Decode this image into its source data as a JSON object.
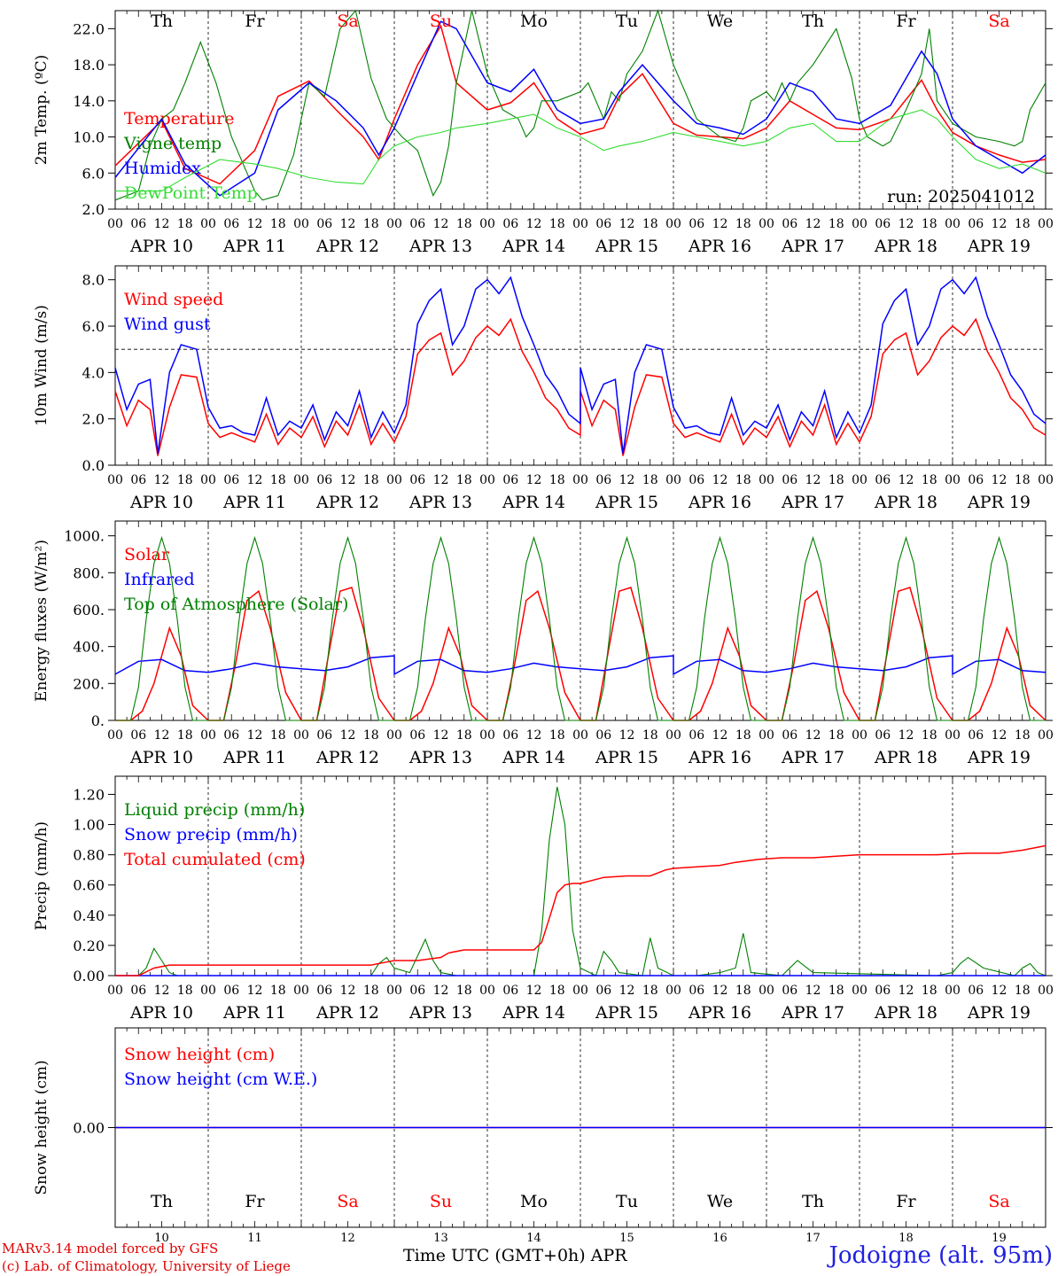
{
  "station": "Jodoigne (alt. 95m)",
  "credits": [
    "MARv3.14 model forced by GFS",
    "(c) Lab. of Climatology, University of Liege"
  ],
  "run_label": "run: 2025041012",
  "x_title": "Time UTC (GMT+0h)",
  "x_month": "APR",
  "days": [
    {
      "date": "APR 10",
      "num": "10",
      "weekday": "Th",
      "weekend": false
    },
    {
      "date": "APR 11",
      "num": "11",
      "weekday": "Fr",
      "weekend": false
    },
    {
      "date": "APR 12",
      "num": "12",
      "weekday": "Sa",
      "weekend": true
    },
    {
      "date": "APR 13",
      "num": "13",
      "weekday": "Su",
      "weekend": true
    },
    {
      "date": "APR 14",
      "num": "14",
      "weekday": "Mo",
      "weekend": false
    },
    {
      "date": "APR 15",
      "num": "15",
      "weekday": "Tu",
      "weekend": false
    },
    {
      "date": "APR 16",
      "num": "16",
      "weekday": "We",
      "weekend": false
    },
    {
      "date": "APR 17",
      "num": "17",
      "weekday": "Th",
      "weekend": false
    },
    {
      "date": "APR 18",
      "num": "18",
      "weekday": "Fr",
      "weekend": false
    },
    {
      "date": "APR 19",
      "num": "19",
      "weekday": "Sa",
      "weekend": true
    }
  ],
  "hour_ticks": [
    "00",
    "06",
    "12",
    "18"
  ],
  "colors": {
    "red": "#ff0000",
    "green": "#008000",
    "blue": "#0000ff",
    "lightgreen": "#33dd33",
    "weekend": "#ff0000"
  },
  "chart_data": [
    {
      "type": "line",
      "ylabel": "2m Temp. (ºC)",
      "ylim": [
        2,
        24
      ],
      "yticks": [
        2.0,
        6.0,
        10.0,
        14.0,
        18.0,
        22.0
      ],
      "ytick_labels": [
        "2.0",
        "6.0",
        "10.0",
        "14.0",
        "18.0",
        "22.0"
      ],
      "series": [
        {
          "name": "Temperature",
          "color": "red",
          "x": [
            0,
            12,
            18,
            27,
            36,
            42,
            50,
            57,
            64,
            68,
            72,
            78,
            84,
            88,
            96,
            102,
            108,
            114,
            120,
            126,
            130,
            136,
            144,
            150,
            156,
            162,
            168,
            174,
            180,
            186,
            192,
            200,
            208,
            212,
            216,
            222,
            228,
            234,
            240
          ],
          "y": [
            6.8,
            11.8,
            6.5,
            4.8,
            8.5,
            14.5,
            16.2,
            13,
            10,
            7.5,
            12,
            18,
            22.3,
            16,
            13,
            13.8,
            16,
            12,
            10.3,
            11,
            14.5,
            17,
            11.5,
            10.2,
            10,
            9.8,
            11,
            14,
            12.5,
            11,
            10.8,
            12,
            16.3,
            13,
            10.5,
            9,
            8,
            7.2,
            7.5
          ]
        },
        {
          "name": "Vigne temp",
          "color": "green",
          "x": [
            0,
            6,
            9,
            12,
            15,
            18,
            22,
            26,
            30,
            34,
            36,
            38,
            42,
            46,
            50,
            54,
            58,
            62,
            66,
            70,
            74,
            78,
            82,
            84,
            86,
            88,
            92,
            96,
            100,
            104,
            106,
            108,
            110,
            114,
            120,
            122,
            126,
            128,
            130,
            132,
            136,
            140,
            144,
            150,
            156,
            160,
            162,
            164,
            168,
            170,
            172,
            174,
            176,
            180,
            186,
            190,
            192,
            194,
            196,
            198,
            200,
            204,
            208,
            210,
            212,
            216,
            222,
            228,
            232,
            234,
            236,
            240
          ],
          "y": [
            3,
            4,
            9,
            12,
            13,
            16,
            20.5,
            16,
            10,
            6,
            4,
            3,
            3.5,
            8,
            16,
            14.5,
            22,
            24,
            16.5,
            12,
            10,
            8.5,
            3.5,
            5,
            9,
            16,
            24,
            17,
            13,
            12,
            10,
            11,
            14,
            14,
            15,
            16,
            12,
            15,
            14,
            17,
            19.5,
            24,
            18,
            12,
            10,
            9.5,
            11,
            14,
            15,
            14,
            16,
            14,
            16,
            18,
            22,
            16.5,
            12,
            10,
            9.5,
            9,
            9.5,
            13,
            17,
            22,
            14,
            11.5,
            10,
            9.5,
            9,
            9.5,
            13,
            16
          ]
        },
        {
          "name": "Humidex",
          "color": "blue",
          "x": [
            0,
            12,
            18,
            27,
            36,
            42,
            50,
            57,
            64,
            68,
            72,
            78,
            84,
            88,
            96,
            102,
            108,
            114,
            120,
            126,
            130,
            136,
            144,
            150,
            156,
            162,
            168,
            174,
            180,
            186,
            192,
            200,
            208,
            212,
            216,
            222,
            228,
            234,
            240
          ],
          "y": [
            5.5,
            12,
            7,
            3.5,
            6,
            13,
            16,
            14,
            11,
            8,
            11,
            17,
            22.8,
            22,
            16,
            15,
            17.5,
            13,
            11.5,
            12,
            15,
            18,
            14,
            11.5,
            11,
            10.3,
            12,
            16,
            15,
            12,
            11.5,
            13.5,
            19.5,
            17,
            12,
            9,
            7.5,
            6,
            8
          ]
        },
        {
          "name": "DewPoint Temp",
          "color": "lightgreen",
          "x": [
            0,
            12,
            18,
            27,
            36,
            42,
            50,
            57,
            64,
            68,
            72,
            78,
            84,
            88,
            96,
            102,
            108,
            114,
            120,
            126,
            130,
            136,
            144,
            150,
            156,
            162,
            168,
            174,
            180,
            186,
            192,
            200,
            208,
            212,
            216,
            222,
            228,
            234,
            240
          ],
          "y": [
            4,
            4,
            5.5,
            7.5,
            7,
            6.5,
            5.5,
            5,
            4.8,
            7.5,
            9,
            10,
            10.5,
            11,
            11.5,
            12,
            12.5,
            11,
            10,
            8.5,
            9,
            9.5,
            10.5,
            10,
            9.5,
            9,
            9.5,
            11,
            11.5,
            9.5,
            9.5,
            12,
            13,
            12,
            10,
            7.5,
            6.5,
            7,
            6
          ]
        }
      ],
      "annotations": [
        "run: 2025041012"
      ]
    },
    {
      "type": "line",
      "ylabel": "10m Wind (m/s)",
      "ylim": [
        0,
        8.6
      ],
      "yticks": [
        0.0,
        2.0,
        4.0,
        6.0,
        8.0
      ],
      "ytick_labels": [
        "0.0",
        "2.0",
        "4.0",
        "6.0",
        "8.0"
      ],
      "reference_y": 5.0,
      "series": [
        {
          "name": "Wind speed",
          "color": "red",
          "x": [
            0,
            3,
            6,
            9,
            11,
            14,
            17,
            21,
            24,
            27,
            30,
            33,
            36,
            39,
            42,
            45,
            48,
            51,
            54,
            57,
            60,
            63,
            66,
            69,
            72,
            75,
            78,
            81,
            84,
            87,
            90,
            93,
            96,
            99,
            102,
            105,
            108,
            111,
            114,
            117,
            120
          ],
          "y": [
            3.2,
            1.7,
            2.8,
            2.4,
            0.4,
            2.5,
            3.9,
            3.8,
            1.8,
            1.2,
            1.4,
            1.2,
            1.0,
            2.2,
            0.9,
            1.6,
            1.2,
            2.1,
            0.8,
            1.9,
            1.3,
            2.6,
            0.9,
            1.8,
            1.0,
            2.1,
            4.8,
            5.4,
            5.7,
            3.9,
            4.5,
            5.5,
            6.0,
            5.6,
            6.3,
            4.9,
            4.0,
            2.9,
            2.4,
            1.6,
            1.3
          ]
        },
        {
          "name": "Wind gust",
          "color": "blue",
          "x": [
            0,
            3,
            6,
            9,
            11,
            14,
            17,
            21,
            24,
            27,
            30,
            33,
            36,
            39,
            42,
            45,
            48,
            51,
            54,
            57,
            60,
            63,
            66,
            69,
            72,
            75,
            78,
            81,
            84,
            87,
            90,
            93,
            96,
            99,
            102,
            105,
            108,
            111,
            114,
            117,
            120
          ],
          "y": [
            4.2,
            2.4,
            3.5,
            3.7,
            0.5,
            4.0,
            5.2,
            5.0,
            2.5,
            1.6,
            1.7,
            1.4,
            1.3,
            2.9,
            1.3,
            1.9,
            1.6,
            2.6,
            1.1,
            2.3,
            1.7,
            3.2,
            1.2,
            2.3,
            1.4,
            2.6,
            6.1,
            7.1,
            7.6,
            5.2,
            6.0,
            7.6,
            8.0,
            7.4,
            8.1,
            6.4,
            5.2,
            3.9,
            3.2,
            2.2,
            1.8
          ]
        }
      ]
    },
    {
      "type": "line",
      "ylabel": "Energy fluxes (W/m²)",
      "ylim": [
        0,
        1080
      ],
      "yticks": [
        0,
        200,
        400,
        600,
        800,
        1000
      ],
      "ytick_labels": [
        "0.",
        "200.",
        "400.",
        "600.",
        "800.",
        "1000."
      ],
      "series": [
        {
          "name": "Solar",
          "color": "red",
          "x": [
            0,
            4,
            7,
            10,
            12,
            14,
            17,
            20,
            24,
            28,
            31,
            34,
            37,
            40,
            44,
            48,
            52,
            55,
            58,
            61,
            64,
            68,
            72
          ],
          "y": [
            0,
            0,
            50,
            200,
            350,
            500,
            350,
            80,
            0,
            0,
            300,
            650,
            700,
            500,
            150,
            0,
            0,
            350,
            700,
            720,
            500,
            120,
            0
          ]
        },
        {
          "name": "Infrared",
          "color": "blue",
          "x": [
            0,
            6,
            12,
            18,
            24,
            30,
            36,
            42,
            48,
            54,
            60,
            66,
            72
          ],
          "y": [
            250,
            320,
            330,
            270,
            260,
            280,
            310,
            290,
            280,
            270,
            290,
            340,
            350
          ]
        },
        {
          "name": "Top of Atmosphere (Solar)",
          "color": "green",
          "x": [
            0,
            4,
            6,
            8,
            10,
            12,
            14,
            16,
            18,
            20,
            22,
            24
          ],
          "y": [
            0,
            0,
            180,
            550,
            850,
            990,
            850,
            550,
            180,
            0,
            0,
            0
          ]
        }
      ]
    },
    {
      "type": "line",
      "ylabel": "Precip (mm/h)",
      "ylim": [
        0,
        1.32
      ],
      "yticks": [
        0.0,
        0.2,
        0.4,
        0.6,
        0.8,
        1.0,
        1.2
      ],
      "ytick_labels": [
        "0.00",
        "0.20",
        "0.40",
        "0.60",
        "0.80",
        "1.00",
        "1.20"
      ],
      "series": [
        {
          "name": "Liquid precip (mm/h)",
          "color": "green",
          "x": [
            0,
            6,
            8,
            10,
            12,
            14,
            16,
            66,
            68,
            70,
            72,
            76,
            80,
            82,
            84,
            88,
            96,
            104,
            108,
            110,
            112,
            114,
            116,
            118,
            120,
            124,
            126,
            128,
            130,
            136,
            138,
            140,
            144,
            150,
            156,
            160,
            162,
            164,
            172,
            176,
            180,
            212,
            216,
            218,
            220,
            224,
            232,
            234,
            236,
            238,
            240
          ],
          "y": [
            0,
            0,
            0.05,
            0.18,
            0.1,
            0.02,
            0,
            0,
            0.08,
            0.12,
            0.05,
            0.02,
            0.24,
            0.1,
            0.02,
            0,
            0,
            0,
            0,
            0.3,
            0.9,
            1.25,
            1.0,
            0.3,
            0.05,
            0,
            0.16,
            0.1,
            0.02,
            0,
            0.25,
            0.05,
            0,
            0,
            0.02,
            0.05,
            0.28,
            0.02,
            0,
            0.1,
            0.02,
            0,
            0.02,
            0.08,
            0.12,
            0.05,
            0,
            0.05,
            0.08,
            0.02,
            0
          ]
        },
        {
          "name": "Snow precip (mm/h)",
          "color": "blue",
          "x": [
            0,
            240
          ],
          "y": [
            0,
            0
          ]
        },
        {
          "name": "Total cumulated (cm)",
          "color": "red",
          "x": [
            0,
            6,
            10,
            14,
            66,
            70,
            72,
            78,
            84,
            86,
            90,
            96,
            108,
            110,
            112,
            114,
            116,
            118,
            120,
            126,
            132,
            138,
            142,
            144,
            150,
            156,
            160,
            166,
            172,
            180,
            186,
            192,
            200,
            212,
            220,
            228,
            234,
            240
          ],
          "y": [
            0,
            0,
            0.05,
            0.07,
            0.07,
            0.09,
            0.1,
            0.1,
            0.12,
            0.15,
            0.17,
            0.17,
            0.17,
            0.22,
            0.38,
            0.55,
            0.6,
            0.61,
            0.61,
            0.65,
            0.66,
            0.66,
            0.7,
            0.71,
            0.72,
            0.73,
            0.75,
            0.77,
            0.78,
            0.78,
            0.79,
            0.8,
            0.8,
            0.8,
            0.81,
            0.81,
            0.83,
            0.86
          ]
        }
      ]
    },
    {
      "type": "line",
      "ylabel": "Snow height (cm)",
      "ylim": [
        -1,
        1
      ],
      "yticks": [
        0.0
      ],
      "ytick_labels": [
        "0.00"
      ],
      "series": [
        {
          "name": "Snow height (cm)",
          "color": "red",
          "x": [
            0,
            240
          ],
          "y": [
            0,
            0
          ]
        },
        {
          "name": "Snow height (cm W.E.)",
          "color": "blue",
          "x": [
            0,
            240
          ],
          "y": [
            0,
            0
          ]
        }
      ]
    }
  ]
}
